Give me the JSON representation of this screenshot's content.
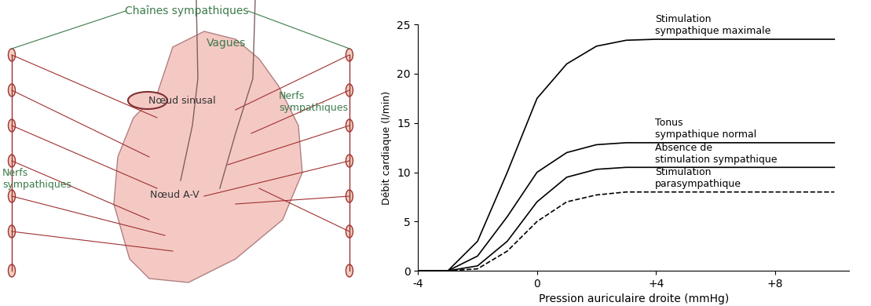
{
  "chart_data": {
    "type": "line",
    "x_label": "Pression auriculaire droite (mmHg)",
    "y_label": "Débit cardiaque (l/min)",
    "x": [
      -4,
      -3,
      -2,
      -1,
      0,
      1,
      2,
      3,
      4,
      5,
      6,
      8,
      10
    ],
    "series": [
      {
        "name": "Stimulation\nsympathique maximale",
        "color": "#000000",
        "line_style": "solid",
        "values": [
          0,
          0,
          3,
          10,
          17.5,
          21,
          22.8,
          23.4,
          23.5,
          23.5,
          23.5,
          23.5,
          23.5
        ]
      },
      {
        "name": "Tonus\nsympathique normal",
        "color": "#000000",
        "line_style": "solid",
        "values": [
          0,
          0,
          1.5,
          5.5,
          10,
          12,
          12.8,
          13,
          13,
          13,
          13,
          13,
          13
        ]
      },
      {
        "name": "Absence de\nstimulation sympathique",
        "color": "#000000",
        "line_style": "solid",
        "values": [
          0,
          0,
          0.5,
          3,
          7,
          9.5,
          10.3,
          10.5,
          10.5,
          10.5,
          10.5,
          10.5,
          10.5
        ]
      },
      {
        "name": "Stimulation\nparasympathique",
        "color": "#000000",
        "line_style": "dashed",
        "values": [
          0,
          0,
          0.2,
          2,
          5,
          7,
          7.7,
          8,
          8,
          8,
          8,
          8,
          8
        ]
      }
    ],
    "xlim": [
      -4,
      10.5
    ],
    "xticks": [
      -4,
      0,
      {
        "value": 4,
        "label": "+4"
      },
      {
        "value": 8,
        "label": "+8"
      }
    ],
    "ylim": [
      0,
      25
    ],
    "yticks": [
      0,
      5,
      10,
      15,
      20,
      25
    ],
    "grid": false
  },
  "diagram": {
    "chains": "Chaînes sympathiques",
    "vagus": "Vagues",
    "sinus_node": "Nœud sinusal",
    "av_node": "Nœud A-V",
    "nerves": [
      "Nerfs\nsympathiques",
      "Nerfs\nsympathiques"
    ]
  }
}
